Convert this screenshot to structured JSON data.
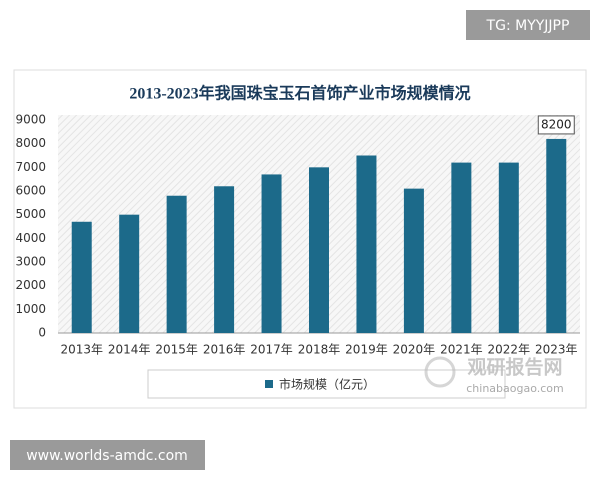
{
  "chart_data": {
    "type": "bar",
    "title": "2013-2023年我国珠宝玉石首饰产业市场规模情况",
    "categories": [
      "2013年",
      "2014年",
      "2015年",
      "2016年",
      "2017年",
      "2018年",
      "2019年",
      "2020年",
      "2021年",
      "2022年",
      "2023年"
    ],
    "series": [
      {
        "name": "市场规模（亿元）",
        "color": "#1c6a8a",
        "values": [
          4700,
          5000,
          5800,
          6200,
          6700,
          7000,
          7500,
          6100,
          7200,
          7200,
          8200
        ]
      }
    ],
    "label_last": true,
    "ylim": [
      0,
      9000
    ],
    "yticks": [
      0,
      1000,
      2000,
      3000,
      4000,
      5000,
      6000,
      7000,
      8000,
      9000
    ],
    "grid": false
  },
  "overlays": {
    "top_tag": "TG: MYYJJPP",
    "bottom_tag": "www.worlds-amdc.com",
    "logo_cn": "观研报告网",
    "logo_en": "chinabaogao.com"
  }
}
